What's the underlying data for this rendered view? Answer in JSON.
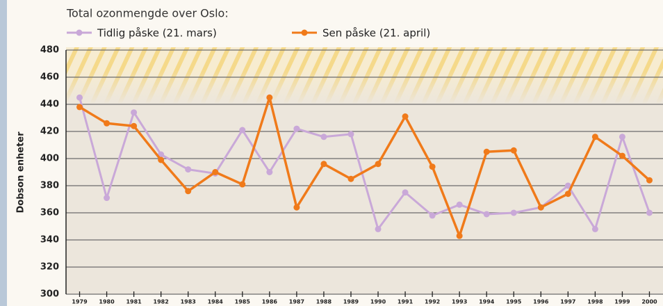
{
  "chart_data": {
    "type": "line",
    "title": "Total ozonmengde over Oslo:",
    "y_label": "Dobson enheter",
    "categories": [
      "1979",
      "1980",
      "1981",
      "1982",
      "1983",
      "1984",
      "1985",
      "1986",
      "1987",
      "1988",
      "1989",
      "1990",
      "1991",
      "1992",
      "1993",
      "1994",
      "1995",
      "1996",
      "1997",
      "1998",
      "1999",
      "2000"
    ],
    "series": [
      {
        "name": "Tidlig påske (21. mars)",
        "color": "#c9a8d8",
        "values": [
          445,
          371,
          434,
          403,
          392,
          389,
          421,
          390,
          422,
          416,
          418,
          348,
          375,
          358,
          366,
          359,
          360,
          364,
          380,
          348,
          416,
          360
        ]
      },
      {
        "name": "Sen påske (21. april)",
        "color": "#f07a1a",
        "values": [
          438,
          426,
          424,
          399,
          376,
          390,
          381,
          445,
          364,
          396,
          385,
          396,
          431,
          394,
          343,
          405,
          406,
          364,
          374,
          416,
          402,
          384
        ]
      }
    ],
    "ylim": [
      300,
      480
    ],
    "yticks": [
      300,
      320,
      340,
      360,
      380,
      400,
      420,
      440,
      460,
      480
    ],
    "grid": true
  }
}
